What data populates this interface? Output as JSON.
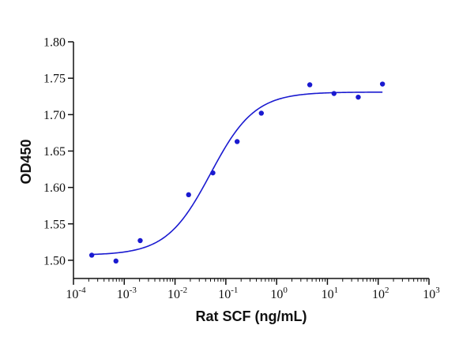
{
  "chart_data": {
    "type": "scatter",
    "title": "",
    "xlabel": "Rat SCF (ng/mL)",
    "ylabel": "OD450",
    "xscale": "log",
    "xlim": [
      0.0001,
      1000
    ],
    "ylim": [
      1.475,
      1.8
    ],
    "x_ticks": [
      {
        "value": 0.0001,
        "base": "10",
        "exp": "-4"
      },
      {
        "value": 0.001,
        "base": "10",
        "exp": "-3"
      },
      {
        "value": 0.01,
        "base": "10",
        "exp": "-2"
      },
      {
        "value": 0.1,
        "base": "10",
        "exp": "-1"
      },
      {
        "value": 1,
        "base": "10",
        "exp": "0"
      },
      {
        "value": 10,
        "base": "10",
        "exp": "1"
      },
      {
        "value": 100,
        "base": "10",
        "exp": "2"
      },
      {
        "value": 1000,
        "base": "10",
        "exp": "3"
      }
    ],
    "y_ticks": [
      "1.50",
      "1.55",
      "1.60",
      "1.65",
      "1.70",
      "1.75",
      "1.80"
    ],
    "grid": false,
    "series": [
      {
        "kind": "points",
        "color": "#1a1ad0",
        "x": [
          0.000229,
          0.000686,
          0.00206,
          0.0185,
          0.0556,
          0.167,
          0.5,
          4.5,
          13.5,
          40.5,
          121.5
        ],
        "y": [
          1.507,
          1.499,
          1.527,
          1.59,
          1.62,
          1.663,
          1.702,
          1.741,
          1.729,
          1.724,
          1.742
        ]
      },
      {
        "kind": "fit",
        "model": "4PL",
        "color": "#1a1ad0",
        "bottom": 1.507,
        "top": 1.731,
        "ec50": 0.05,
        "hill": 1.0,
        "x_range": [
          0.000229,
          121.5
        ]
      }
    ]
  }
}
